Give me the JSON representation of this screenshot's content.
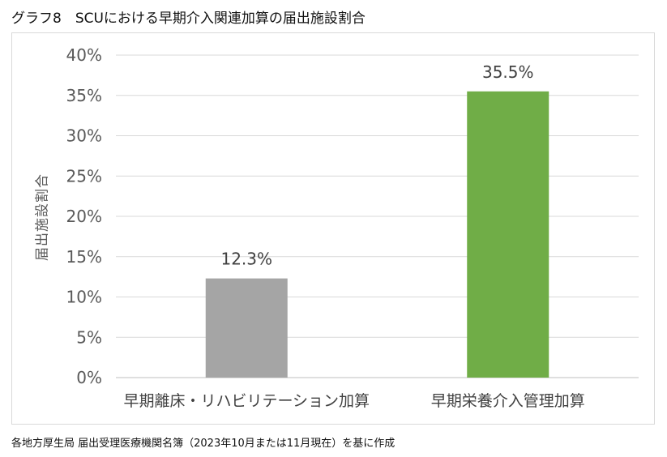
{
  "title": "グラフ8　SCUにおける早期介入関連加算の届出施設割合",
  "source": "各地方厚生局 届出受理医療機関名簿（2023年10月または11月現在）を基に作成",
  "chart_data": {
    "type": "bar",
    "ylabel": "届出施設割合",
    "ylim": [
      0,
      40
    ],
    "yticks": [
      0,
      5,
      10,
      15,
      20,
      25,
      30,
      35,
      40
    ],
    "grid": true,
    "categories": [
      "早期離床・リハビリテーション加算",
      "早期栄養介入管理加算"
    ],
    "values": [
      12.3,
      35.5
    ],
    "data_labels": [
      "12.3%",
      "35.5%"
    ],
    "colors": [
      "#a5a5a5",
      "#70ad47"
    ]
  }
}
